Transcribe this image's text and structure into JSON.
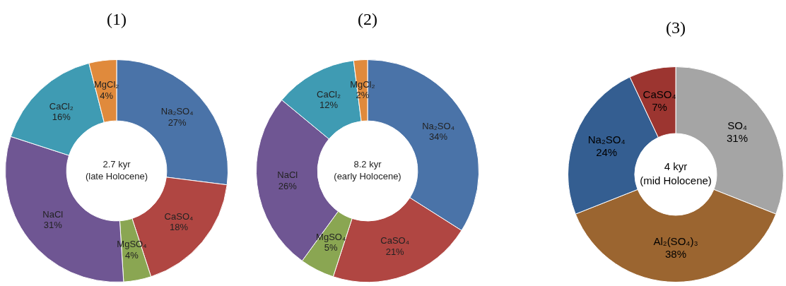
{
  "chart_data": [
    {
      "type": "donut",
      "title": "(1)",
      "categories": [
        "Na₂SO₄",
        "CaSO₄",
        "MgSO₄",
        "NaCl",
        "CaCl₂",
        "MgCl₂"
      ],
      "values": [
        27,
        18,
        4,
        31,
        16,
        4
      ],
      "value_labels": [
        "27%",
        "18%",
        "4%",
        "31%",
        "16%",
        "4%"
      ],
      "colors": [
        "#4a73a8",
        "#b04642",
        "#8aa652",
        "#6f5693",
        "#3f9bb3",
        "#e08a3c"
      ],
      "legend": false,
      "annotations": [
        "2.7 kyr",
        "(late Holocene)"
      ]
    },
    {
      "type": "donut",
      "title": "(2)",
      "categories": [
        "Na₂SO₄",
        "CaSO₄",
        "MgSO₄",
        "NaCl",
        "CaCl₂",
        "MgCl₂"
      ],
      "values": [
        34,
        21,
        5,
        26,
        12,
        2
      ],
      "value_labels": [
        "34%",
        "21%",
        "5%",
        "26%",
        "12%",
        "2%"
      ],
      "colors": [
        "#4a73a8",
        "#b04642",
        "#8aa652",
        "#6f5693",
        "#3f9bb3",
        "#e08a3c"
      ],
      "legend": false,
      "annotations": [
        "8.2 kyr",
        "(early Holocene)"
      ]
    },
    {
      "type": "donut",
      "title": "(3)",
      "categories": [
        "SO₄",
        "Al₂(SO₄)₃",
        "Na₂SO₄",
        "CaSO₄"
      ],
      "values": [
        31,
        38,
        24,
        7
      ],
      "value_labels": [
        "31%",
        "38%",
        "24%",
        "7%"
      ],
      "colors": [
        "#a5a5a5",
        "#9b6530",
        "#345e91",
        "#9c3530"
      ],
      "legend": false,
      "annotations": [
        "4 kyr",
        "(mid Holocene)"
      ]
    }
  ]
}
